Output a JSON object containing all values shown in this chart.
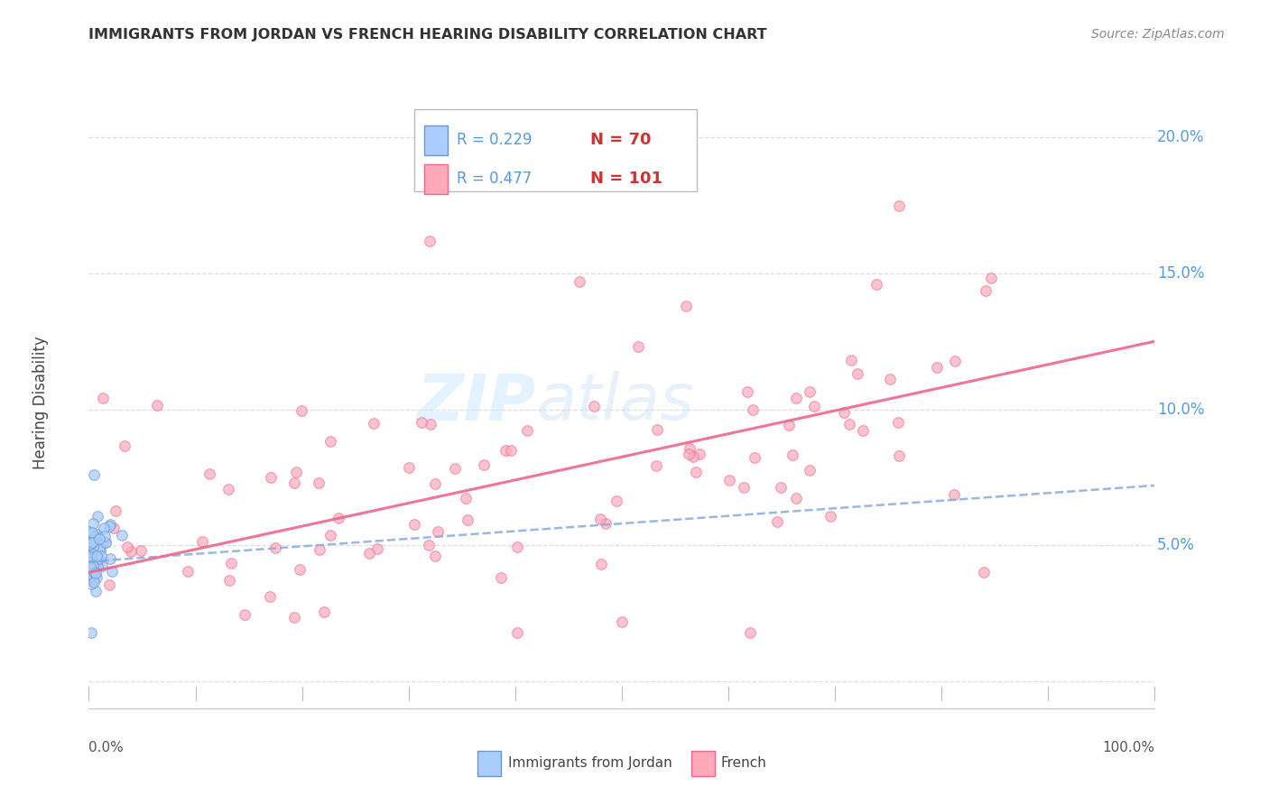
{
  "title": "IMMIGRANTS FROM JORDAN VS FRENCH HEARING DISABILITY CORRELATION CHART",
  "source": "Source: ZipAtlas.com",
  "ylabel": "Hearing Disability",
  "legend_blue_r": "R = 0.229",
  "legend_blue_n": "N = 70",
  "legend_pink_r": "R = 0.477",
  "legend_pink_n": "N = 101",
  "legend_label_blue": "Immigrants from Jordan",
  "legend_label_pink": "French",
  "blue_color": "#aaccff",
  "blue_edge_color": "#6699cc",
  "pink_color": "#ffaabb",
  "pink_edge_color": "#ee6688",
  "blue_trend_color": "#88aadd",
  "pink_trend_color": "#ee6688",
  "watermark_color": "#cce8ff",
  "grid_color": "#dddddd",
  "ytick_color": "#5599dd",
  "background_color": "#ffffff",
  "blue_trend_start_y": 0.044,
  "blue_trend_end_y": 0.072,
  "pink_trend_start_y": 0.04,
  "pink_trend_end_y": 0.125,
  "xlim_min": 0.0,
  "xlim_max": 1.0,
  "ylim_min": -0.01,
  "ylim_max": 0.215
}
